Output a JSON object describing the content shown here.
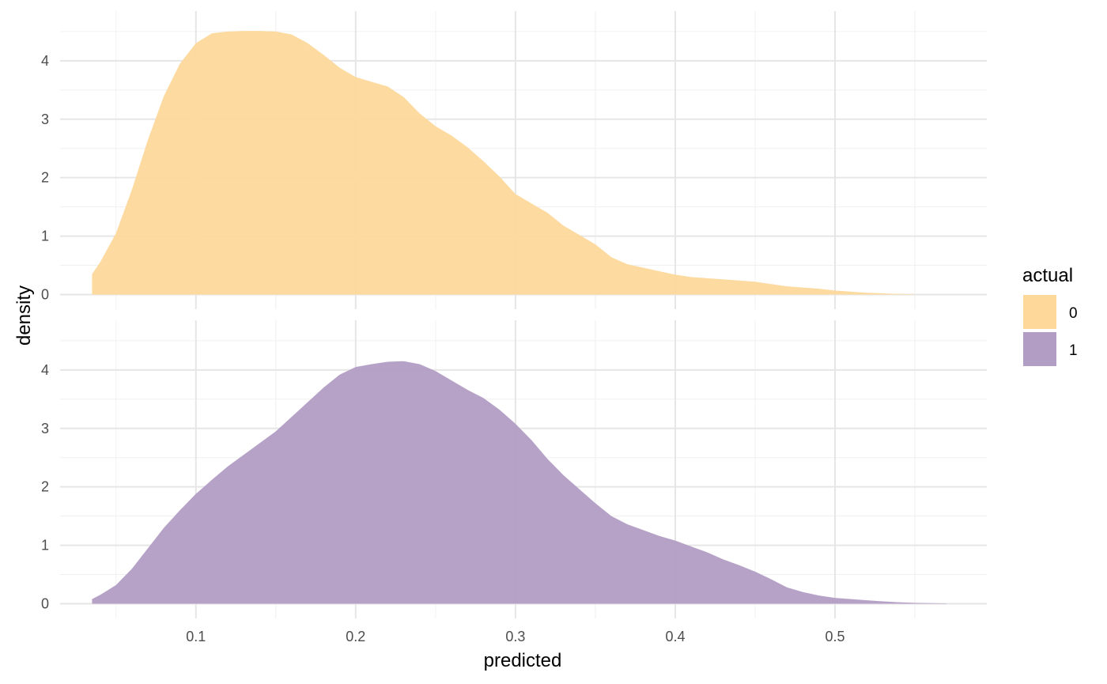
{
  "chart_data": {
    "type": "area",
    "facets": [
      "0",
      "1"
    ],
    "xlabel": "predicted",
    "ylabel": "density",
    "xlim": [
      0.015,
      0.595
    ],
    "ylim": [
      -0.25,
      4.85
    ],
    "x_ticks": [
      0.1,
      0.2,
      0.3,
      0.4,
      0.5
    ],
    "x_tick_labels": [
      "0.1",
      "0.2",
      "0.3",
      "0.4",
      "0.5"
    ],
    "y_ticks": [
      0,
      1,
      2,
      3,
      4
    ],
    "y_tick_labels": [
      "0",
      "1",
      "2",
      "3",
      "4"
    ],
    "grid": true,
    "legend": {
      "title": "actual",
      "placement": "right",
      "entries": [
        {
          "label": "0",
          "color": "#FDD89A"
        },
        {
          "label": "1",
          "color": "#B29DC4"
        }
      ]
    },
    "series": [
      {
        "name": "0",
        "color": "#FDD89A",
        "x": [
          0.035,
          0.04,
          0.05,
          0.06,
          0.07,
          0.08,
          0.09,
          0.1,
          0.11,
          0.12,
          0.13,
          0.14,
          0.15,
          0.16,
          0.17,
          0.18,
          0.19,
          0.2,
          0.21,
          0.22,
          0.23,
          0.24,
          0.25,
          0.26,
          0.27,
          0.28,
          0.29,
          0.3,
          0.31,
          0.32,
          0.33,
          0.34,
          0.35,
          0.36,
          0.37,
          0.38,
          0.39,
          0.4,
          0.41,
          0.42,
          0.43,
          0.44,
          0.45,
          0.46,
          0.47,
          0.48,
          0.49,
          0.5,
          0.51,
          0.52,
          0.53,
          0.54,
          0.55
        ],
        "y": [
          0.35,
          0.55,
          1.05,
          1.8,
          2.65,
          3.4,
          3.95,
          4.3,
          4.47,
          4.5,
          4.51,
          4.51,
          4.5,
          4.45,
          4.3,
          4.1,
          3.88,
          3.72,
          3.64,
          3.56,
          3.38,
          3.1,
          2.88,
          2.72,
          2.52,
          2.28,
          2.02,
          1.72,
          1.56,
          1.4,
          1.18,
          1.02,
          0.86,
          0.64,
          0.52,
          0.46,
          0.4,
          0.34,
          0.3,
          0.28,
          0.26,
          0.24,
          0.22,
          0.18,
          0.14,
          0.12,
          0.1,
          0.07,
          0.05,
          0.03,
          0.02,
          0.01,
          0.005
        ]
      },
      {
        "name": "1",
        "color": "#B29DC4",
        "x": [
          0.035,
          0.04,
          0.05,
          0.06,
          0.07,
          0.08,
          0.09,
          0.1,
          0.11,
          0.12,
          0.13,
          0.14,
          0.15,
          0.16,
          0.17,
          0.18,
          0.19,
          0.2,
          0.21,
          0.22,
          0.23,
          0.24,
          0.25,
          0.26,
          0.27,
          0.28,
          0.29,
          0.3,
          0.31,
          0.32,
          0.33,
          0.34,
          0.35,
          0.36,
          0.37,
          0.38,
          0.39,
          0.4,
          0.41,
          0.42,
          0.43,
          0.44,
          0.45,
          0.46,
          0.47,
          0.48,
          0.49,
          0.5,
          0.51,
          0.52,
          0.53,
          0.54,
          0.55,
          0.56,
          0.57
        ],
        "y": [
          0.08,
          0.15,
          0.32,
          0.6,
          0.95,
          1.3,
          1.6,
          1.88,
          2.12,
          2.35,
          2.55,
          2.75,
          2.95,
          3.2,
          3.45,
          3.7,
          3.92,
          4.05,
          4.1,
          4.14,
          4.15,
          4.1,
          3.98,
          3.82,
          3.66,
          3.52,
          3.32,
          3.08,
          2.8,
          2.48,
          2.2,
          1.96,
          1.72,
          1.5,
          1.36,
          1.26,
          1.16,
          1.08,
          0.98,
          0.88,
          0.76,
          0.66,
          0.55,
          0.42,
          0.28,
          0.2,
          0.14,
          0.1,
          0.08,
          0.06,
          0.04,
          0.025,
          0.015,
          0.01,
          0.005
        ]
      }
    ]
  }
}
